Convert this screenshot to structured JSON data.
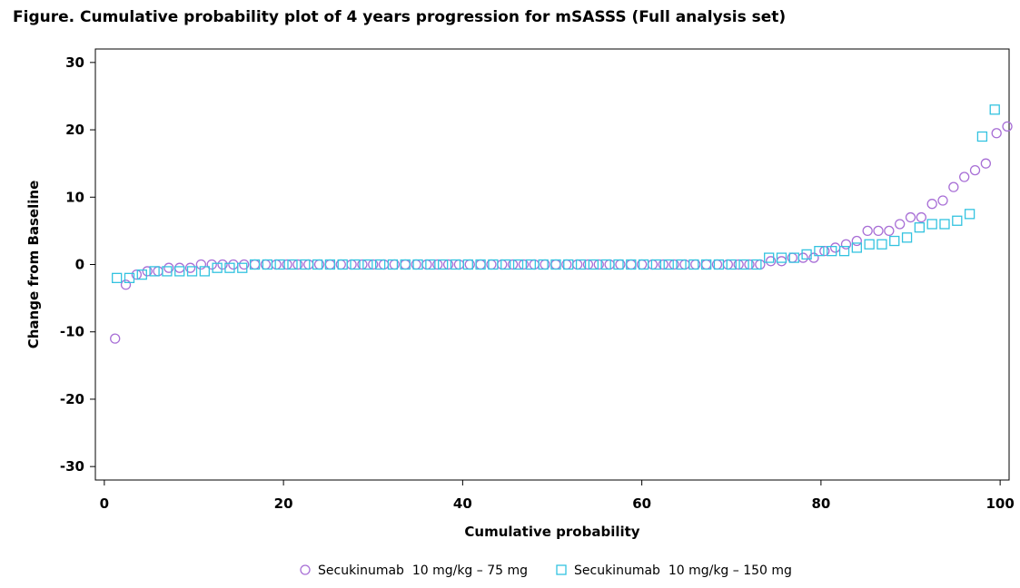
{
  "chart_data": {
    "type": "scatter",
    "title": "Figure. Cumulative probability plot of 4 years progression for mSASSS (Full analysis set)",
    "xlabel": "Cumulative probability",
    "ylabel": "Change from Baseline",
    "xlim": [
      -1,
      101
    ],
    "ylim": [
      -32,
      32
    ],
    "xticks": [
      0,
      20,
      40,
      60,
      80,
      100
    ],
    "yticks": [
      -30,
      -20,
      -10,
      0,
      10,
      20,
      30
    ],
    "grid": false,
    "legend_position": "bottom",
    "series": [
      {
        "name": "Secukinumab  10 mg/kg – 75 mg",
        "marker": "circle",
        "color": "#a86fd6",
        "points": [
          [
            1.2,
            -11
          ],
          [
            2.4,
            -3
          ],
          [
            3.6,
            -1.5
          ],
          [
            4.8,
            -1
          ],
          [
            6.0,
            -1
          ],
          [
            7.2,
            -0.5
          ],
          [
            8.4,
            -0.5
          ],
          [
            9.6,
            -0.5
          ],
          [
            10.8,
            0
          ],
          [
            12.0,
            0
          ],
          [
            13.2,
            0
          ],
          [
            14.4,
            0
          ],
          [
            15.6,
            0
          ],
          [
            16.8,
            0
          ],
          [
            18.0,
            0
          ],
          [
            19.2,
            0
          ],
          [
            20.4,
            0
          ],
          [
            21.6,
            0
          ],
          [
            22.8,
            0
          ],
          [
            24.0,
            0
          ],
          [
            25.2,
            0
          ],
          [
            26.4,
            0
          ],
          [
            27.6,
            0
          ],
          [
            28.8,
            0
          ],
          [
            30.0,
            0
          ],
          [
            31.2,
            0
          ],
          [
            32.4,
            0
          ],
          [
            33.6,
            0
          ],
          [
            34.8,
            0
          ],
          [
            36.0,
            0
          ],
          [
            37.2,
            0
          ],
          [
            38.4,
            0
          ],
          [
            39.6,
            0
          ],
          [
            40.8,
            0
          ],
          [
            42.0,
            0
          ],
          [
            43.2,
            0
          ],
          [
            44.4,
            0
          ],
          [
            45.6,
            0
          ],
          [
            46.8,
            0
          ],
          [
            48.0,
            0
          ],
          [
            49.2,
            0
          ],
          [
            50.4,
            0
          ],
          [
            51.6,
            0
          ],
          [
            52.8,
            0
          ],
          [
            54.0,
            0
          ],
          [
            55.2,
            0
          ],
          [
            56.4,
            0
          ],
          [
            57.6,
            0
          ],
          [
            58.8,
            0
          ],
          [
            60.0,
            0
          ],
          [
            61.2,
            0
          ],
          [
            62.4,
            0
          ],
          [
            63.6,
            0
          ],
          [
            64.8,
            0
          ],
          [
            66.0,
            0
          ],
          [
            67.2,
            0
          ],
          [
            68.4,
            0
          ],
          [
            69.6,
            0
          ],
          [
            70.8,
            0
          ],
          [
            72.0,
            0
          ],
          [
            73.2,
            0
          ],
          [
            74.4,
            0.5
          ],
          [
            75.6,
            0.5
          ],
          [
            76.8,
            1
          ],
          [
            78.0,
            1
          ],
          [
            79.2,
            1
          ],
          [
            80.4,
            2
          ],
          [
            81.6,
            2.5
          ],
          [
            82.8,
            3
          ],
          [
            84.0,
            3.5
          ],
          [
            85.2,
            5
          ],
          [
            86.4,
            5
          ],
          [
            87.6,
            5
          ],
          [
            88.8,
            6
          ],
          [
            90.0,
            7
          ],
          [
            91.2,
            7
          ],
          [
            92.4,
            9
          ],
          [
            93.6,
            9.5
          ],
          [
            94.8,
            11.5
          ],
          [
            96.0,
            13
          ],
          [
            97.2,
            14
          ],
          [
            98.4,
            15
          ],
          [
            99.6,
            19.5
          ],
          [
            100.8,
            20.5
          ]
        ]
      },
      {
        "name": "Secukinumab  10 mg/kg – 150 mg",
        "marker": "square",
        "color": "#33c3e0",
        "points": [
          [
            1.4,
            -2
          ],
          [
            2.8,
            -2
          ],
          [
            4.2,
            -1.5
          ],
          [
            5.6,
            -1
          ],
          [
            7.0,
            -1
          ],
          [
            8.4,
            -1
          ],
          [
            9.8,
            -1
          ],
          [
            11.2,
            -1
          ],
          [
            12.6,
            -0.5
          ],
          [
            14.0,
            -0.5
          ],
          [
            15.4,
            -0.5
          ],
          [
            16.8,
            0
          ],
          [
            18.2,
            0
          ],
          [
            19.6,
            0
          ],
          [
            21.0,
            0
          ],
          [
            22.4,
            0
          ],
          [
            23.8,
            0
          ],
          [
            25.2,
            0
          ],
          [
            26.6,
            0
          ],
          [
            28.0,
            0
          ],
          [
            29.4,
            0
          ],
          [
            30.8,
            0
          ],
          [
            32.2,
            0
          ],
          [
            33.6,
            0
          ],
          [
            35.0,
            0
          ],
          [
            36.4,
            0
          ],
          [
            37.8,
            0
          ],
          [
            39.2,
            0
          ],
          [
            40.6,
            0
          ],
          [
            42.0,
            0
          ],
          [
            43.4,
            0
          ],
          [
            44.8,
            0
          ],
          [
            46.2,
            0
          ],
          [
            47.6,
            0
          ],
          [
            49.0,
            0
          ],
          [
            50.4,
            0
          ],
          [
            51.8,
            0
          ],
          [
            53.2,
            0
          ],
          [
            54.6,
            0
          ],
          [
            56.0,
            0
          ],
          [
            57.4,
            0
          ],
          [
            58.8,
            0
          ],
          [
            60.2,
            0
          ],
          [
            61.6,
            0
          ],
          [
            63.0,
            0
          ],
          [
            64.4,
            0
          ],
          [
            65.8,
            0
          ],
          [
            67.2,
            0
          ],
          [
            68.6,
            0
          ],
          [
            70.0,
            0
          ],
          [
            71.4,
            0
          ],
          [
            72.8,
            0
          ],
          [
            74.2,
            1
          ],
          [
            75.6,
            1
          ],
          [
            77.0,
            1
          ],
          [
            78.4,
            1.5
          ],
          [
            79.8,
            2
          ],
          [
            81.2,
            2
          ],
          [
            82.6,
            2
          ],
          [
            84.0,
            2.5
          ],
          [
            85.4,
            3
          ],
          [
            86.8,
            3
          ],
          [
            88.2,
            3.5
          ],
          [
            89.6,
            4
          ],
          [
            91.0,
            5.5
          ],
          [
            92.4,
            6
          ],
          [
            93.8,
            6
          ],
          [
            95.2,
            6.5
          ],
          [
            96.6,
            7.5
          ],
          [
            98.0,
            19
          ],
          [
            99.4,
            23
          ]
        ]
      }
    ]
  }
}
